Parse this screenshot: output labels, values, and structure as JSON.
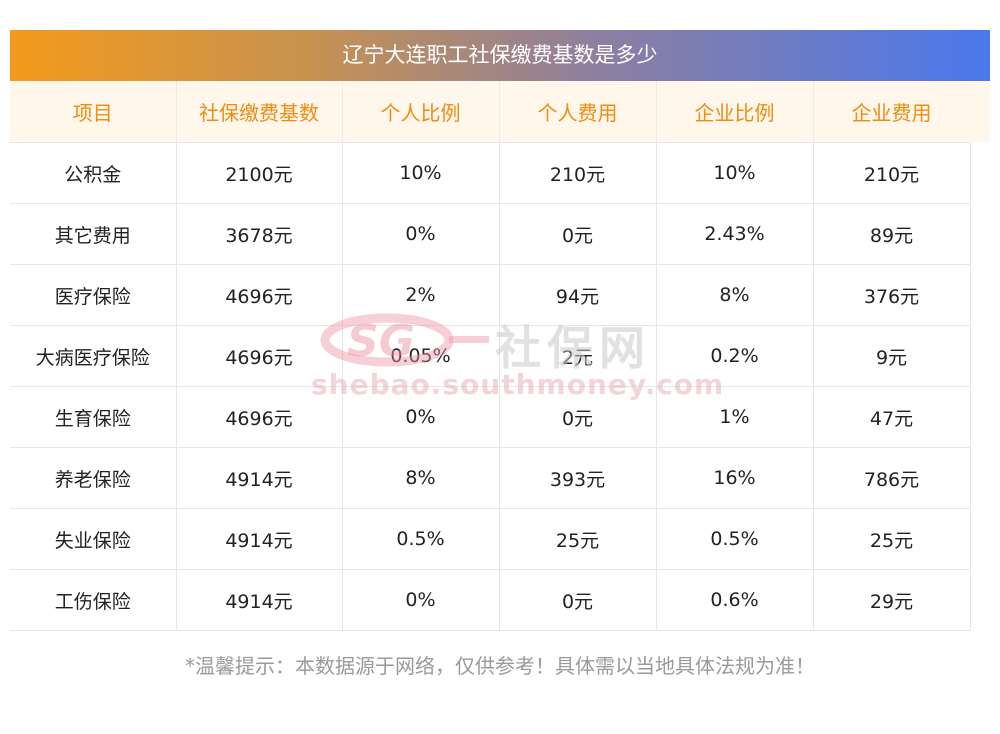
{
  "title": "辽宁大连职工社保缴费基数是多少",
  "columns": [
    "项目",
    "社保缴费基数",
    "个人比例",
    "个人费用",
    "企业比例",
    "企业费用"
  ],
  "rows": [
    [
      "公积金",
      "2100元",
      "10%",
      "210元",
      "10%",
      "210元"
    ],
    [
      "其它费用",
      "3678元",
      "0%",
      "0元",
      "2.43%",
      "89元"
    ],
    [
      "医疗保险",
      "4696元",
      "2%",
      "94元",
      "8%",
      "376元"
    ],
    [
      "大病医疗保险",
      "4696元",
      "0.05%",
      "2元",
      "0.2%",
      "9元"
    ],
    [
      "生育保险",
      "4696元",
      "0%",
      "0元",
      "1%",
      "47元"
    ],
    [
      "养老保险",
      "4914元",
      "8%",
      "393元",
      "16%",
      "786元"
    ],
    [
      "失业保险",
      "4914元",
      "0.5%",
      "25元",
      "0.5%",
      "25元"
    ],
    [
      "工伤保险",
      "4914元",
      "0%",
      "0元",
      "0.6%",
      "29元"
    ]
  ],
  "watermark": {
    "logo_text": "SG",
    "brand_cn": "社保网",
    "url": "shebao.southmoney.com"
  },
  "footer_note": "*温馨提示：本数据源于网络，仅供参考！具体需以当地具体法规为准！",
  "colors": {
    "header_text": "#f08c10",
    "header_bg": "#fff6ec",
    "title_gradient_start": "#f39a1b",
    "title_gradient_end": "#4a78ec"
  }
}
